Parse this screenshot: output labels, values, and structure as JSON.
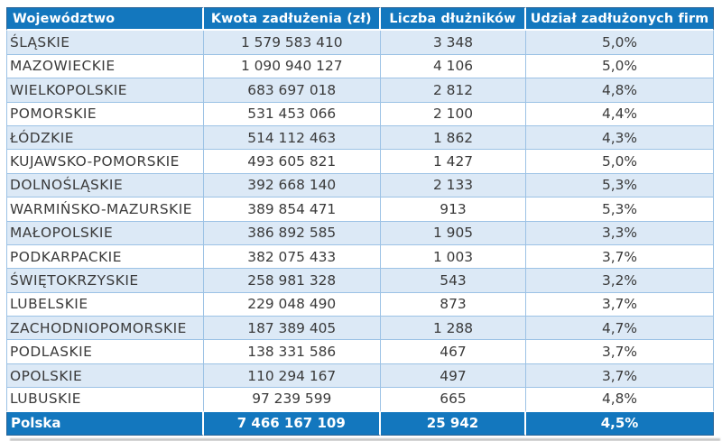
{
  "chart_data": {
    "type": "table",
    "columns": [
      "Województwo",
      "Kwota zadłużenia (zł)",
      "Liczba dłużników",
      "Udział zadłużonych firm"
    ],
    "rows": [
      {
        "wojewodztwo": "ŚLĄSKIE",
        "kwota_zadluzenia_zl": 1579583410,
        "liczba_dluznikow": 3348,
        "udzial_zadluzonych_firm_pct": 5.0
      },
      {
        "wojewodztwo": "MAZOWIECKIE",
        "kwota_zadluzenia_zl": 1090940127,
        "liczba_dluznikow": 4106,
        "udzial_zadluzonych_firm_pct": 5.0
      },
      {
        "wojewodztwo": "WIELKOPOLSKIE",
        "kwota_zadluzenia_zl": 683697018,
        "liczba_dluznikow": 2812,
        "udzial_zadluzonych_firm_pct": 4.8
      },
      {
        "wojewodztwo": "POMORSKIE",
        "kwota_zadluzenia_zl": 531453066,
        "liczba_dluznikow": 2100,
        "udzial_zadluzonych_firm_pct": 4.4
      },
      {
        "wojewodztwo": "ŁÓDZKIE",
        "kwota_zadluzenia_zl": 514112463,
        "liczba_dluznikow": 1862,
        "udzial_zadluzonych_firm_pct": 4.3
      },
      {
        "wojewodztwo": "KUJAWSKO-POMORSKIE",
        "kwota_zadluzenia_zl": 493605821,
        "liczba_dluznikow": 1427,
        "udzial_zadluzonych_firm_pct": 5.0
      },
      {
        "wojewodztwo": "DOLNOŚLĄSKIE",
        "kwota_zadluzenia_zl": 392668140,
        "liczba_dluznikow": 2133,
        "udzial_zadluzonych_firm_pct": 5.3
      },
      {
        "wojewodztwo": "WARMIŃSKO-MAZURSKIE",
        "kwota_zadluzenia_zl": 389854471,
        "liczba_dluznikow": 913,
        "udzial_zadluzonych_firm_pct": 5.3
      },
      {
        "wojewodztwo": "MAŁOPOLSKIE",
        "kwota_zadluzenia_zl": 386892585,
        "liczba_dluznikow": 1905,
        "udzial_zadluzonych_firm_pct": 3.3
      },
      {
        "wojewodztwo": "PODKARPACKIE",
        "kwota_zadluzenia_zl": 382075433,
        "liczba_dluznikow": 1003,
        "udzial_zadluzonych_firm_pct": 3.7
      },
      {
        "wojewodztwo": "ŚWIĘTOKRZYSKIE",
        "kwota_zadluzenia_zl": 258981328,
        "liczba_dluznikow": 543,
        "udzial_zadluzonych_firm_pct": 3.2
      },
      {
        "wojewodztwo": "LUBELSKIE",
        "kwota_zadluzenia_zl": 229048490,
        "liczba_dluznikow": 873,
        "udzial_zadluzonych_firm_pct": 3.7
      },
      {
        "wojewodztwo": "ZACHODNIOPOMORSKIE",
        "kwota_zadluzenia_zl": 187389405,
        "liczba_dluznikow": 1288,
        "udzial_zadluzonych_firm_pct": 4.7
      },
      {
        "wojewodztwo": "PODLASKIE",
        "kwota_zadluzenia_zl": 138331586,
        "liczba_dluznikow": 467,
        "udzial_zadluzonych_firm_pct": 3.7
      },
      {
        "wojewodztwo": "OPOLSKIE",
        "kwota_zadluzenia_zl": 110294167,
        "liczba_dluznikow": 497,
        "udzial_zadluzonych_firm_pct": 3.7
      },
      {
        "wojewodztwo": "LUBUSKIE",
        "kwota_zadluzenia_zl": 97239599,
        "liczba_dluznikow": 665,
        "udzial_zadluzonych_firm_pct": 4.8
      }
    ],
    "total_row": {
      "wojewodztwo": "Polska",
      "kwota_zadluzenia_zl": 7466167109,
      "liczba_dluznikow": 25942,
      "udzial_zadluzonych_firm_pct": 4.5
    }
  },
  "table": {
    "columns": [
      {
        "label": "Województwo",
        "align": "left"
      },
      {
        "label": "Kwota zadłużenia (zł)",
        "align": "center"
      },
      {
        "label": "Liczba dłużników",
        "align": "center"
      },
      {
        "label": "Udział zadłużonych firm",
        "align": "center"
      }
    ],
    "rows": [
      [
        "ŚLĄSKIE",
        "1 579 583 410",
        "3 348",
        "5,0%"
      ],
      [
        "MAZOWIECKIE",
        "1 090 940 127",
        "4 106",
        "5,0%"
      ],
      [
        "WIELKOPOLSKIE",
        "683 697 018",
        "2 812",
        "4,8%"
      ],
      [
        "POMORSKIE",
        "531 453 066",
        "2 100",
        "4,4%"
      ],
      [
        "ŁÓDZKIE",
        "514 112 463",
        "1 862",
        "4,3%"
      ],
      [
        "KUJAWSKO-POMORSKIE",
        "493 605 821",
        "1 427",
        "5,0%"
      ],
      [
        "DOLNOŚLĄSKIE",
        "392 668 140",
        "2 133",
        "5,3%"
      ],
      [
        "WARMIŃSKO-MAZURSKIE",
        "389 854 471",
        "913",
        "5,3%"
      ],
      [
        "MAŁOPOLSKIE",
        "386 892 585",
        "1 905",
        "3,3%"
      ],
      [
        "PODKARPACKIE",
        "382 075 433",
        "1 003",
        "3,7%"
      ],
      [
        "ŚWIĘTOKRZYSKIE",
        "258 981 328",
        "543",
        "3,2%"
      ],
      [
        "LUBELSKIE",
        "229 048 490",
        "873",
        "3,7%"
      ],
      [
        "ZACHODNIOPOMORSKIE",
        "187 389 405",
        "1 288",
        "4,7%"
      ],
      [
        "PODLASKIE",
        "138 331 586",
        "467",
        "3,7%"
      ],
      [
        "OPOLSKIE",
        "110 294 167",
        "497",
        "3,7%"
      ],
      [
        "LUBUSKIE",
        "97 239 599",
        "665",
        "4,8%"
      ]
    ],
    "footer": [
      "Polska",
      "7 466 167 109",
      "25 942",
      "4,5%"
    ]
  },
  "colors": {
    "header_bg": "#1377BE",
    "header_text": "#FFFFFF",
    "row_alt_bg": "#DCE9F6",
    "row_bg": "#FFFFFF",
    "border": "#9CC2E5",
    "data_text": "#3A3A3A"
  }
}
